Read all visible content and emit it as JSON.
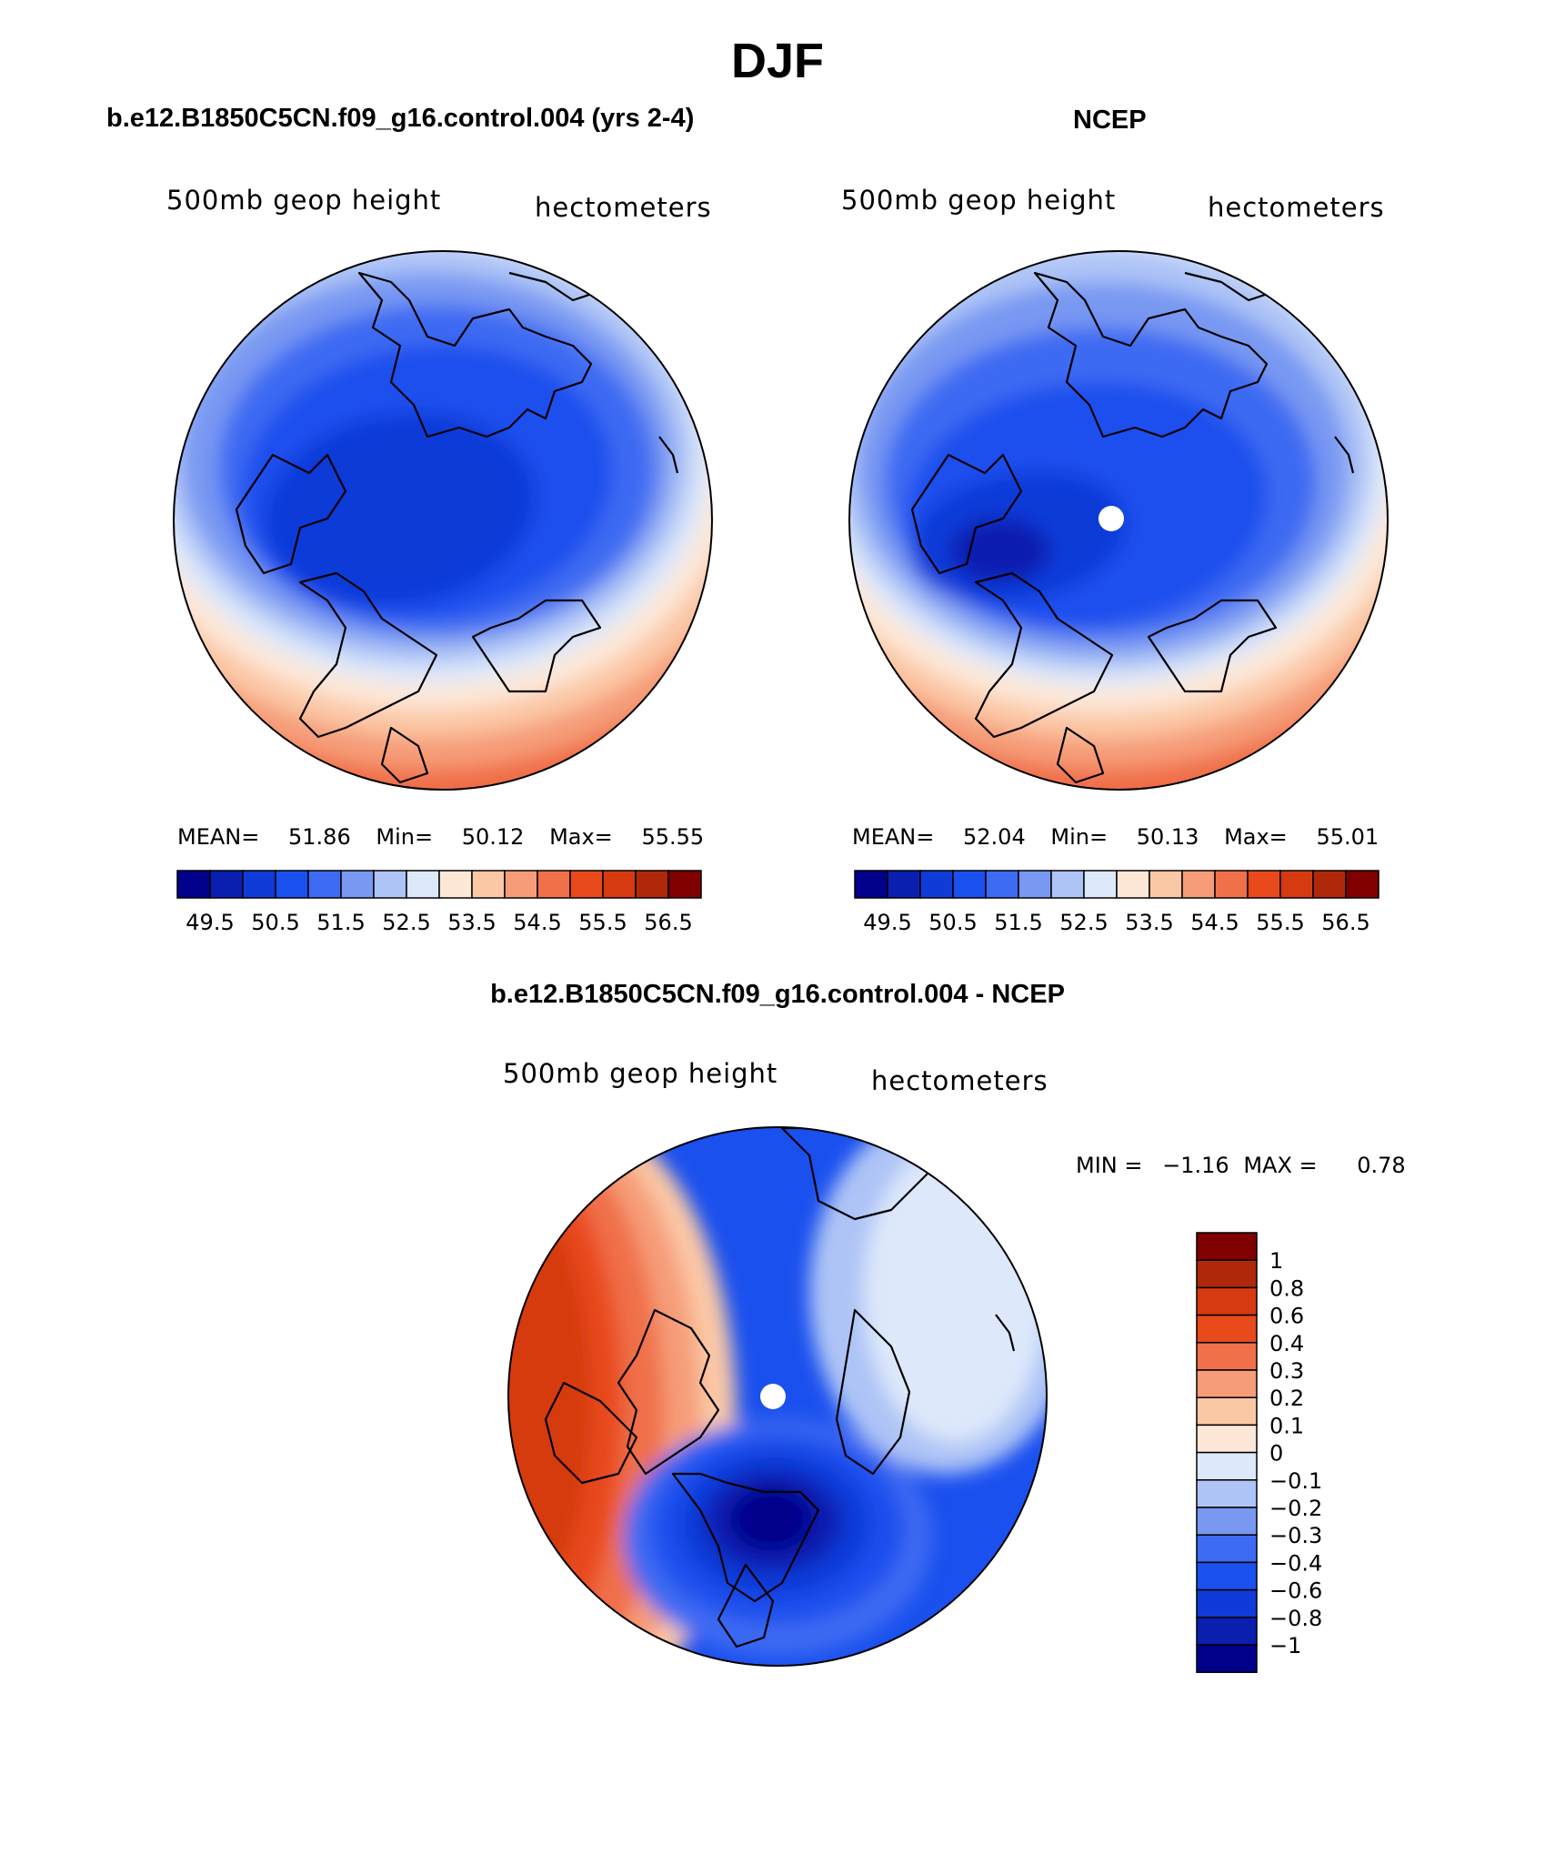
{
  "figure": {
    "title": "DJF"
  },
  "panels": [
    {
      "title": "b.e12.B1850C5CN.f09_g16.control.004 (yrs 2-4)",
      "left_label": "500mb geop height",
      "right_label": "hectometers",
      "stats": {
        "mean_label": "MEAN=",
        "mean": "51.86",
        "min_label": "Min=",
        "min": "50.12",
        "max_label": "Max=",
        "max": "55.55"
      },
      "colorbar_ticks": [
        "49.5",
        "50.5",
        "51.5",
        "52.5",
        "53.5",
        "54.5",
        "55.5",
        "56.5"
      ],
      "has_pole_dot": false
    },
    {
      "title": "NCEP",
      "left_label": "500mb geop height",
      "right_label": "hectometers",
      "stats": {
        "mean_label": "MEAN=",
        "mean": "52.04",
        "min_label": "Min=",
        "min": "50.13",
        "max_label": "Max=",
        "max": "55.01"
      },
      "colorbar_ticks": [
        "49.5",
        "50.5",
        "51.5",
        "52.5",
        "53.5",
        "54.5",
        "55.5",
        "56.5"
      ],
      "has_pole_dot": true
    },
    {
      "title": "b.e12.B1850C5CN.f09_g16.control.004 - NCEP",
      "left_label": "500mb geop height",
      "right_label": "hectometers",
      "stats": {
        "min_label": "MIN =",
        "min": "−1.16",
        "max_label": "MAX =",
        "max": "0.78"
      },
      "colorbar_ticks": [
        "1",
        "0.8",
        "0.6",
        "0.4",
        "0.3",
        "0.2",
        "0.1",
        "0",
        "−0.1",
        "−0.2",
        "−0.3",
        "−0.4",
        "−0.6",
        "−0.8",
        "−1"
      ],
      "has_pole_dot": true
    }
  ],
  "palette": {
    "abs_16": [
      "#00008a",
      "#0a1fb0",
      "#0f3bd8",
      "#1a50ee",
      "#3d6bf2",
      "#7898f2",
      "#aec4f6",
      "#dde8fa",
      "#fde8d8",
      "#fbc8a6",
      "#f69c78",
      "#f0704a",
      "#e84a1c",
      "#d63a10",
      "#b0280a",
      "#800000"
    ],
    "diff_16": [
      "#00008a",
      "#0a1fb0",
      "#0f3bd8",
      "#1a50ee",
      "#3d6bf2",
      "#7898f2",
      "#aec4f6",
      "#dde8fa",
      "#fde8d8",
      "#fbc8a6",
      "#f69c78",
      "#f0704a",
      "#e84a1c",
      "#d63a10",
      "#b0280a",
      "#800000"
    ],
    "coast": "#000000"
  }
}
